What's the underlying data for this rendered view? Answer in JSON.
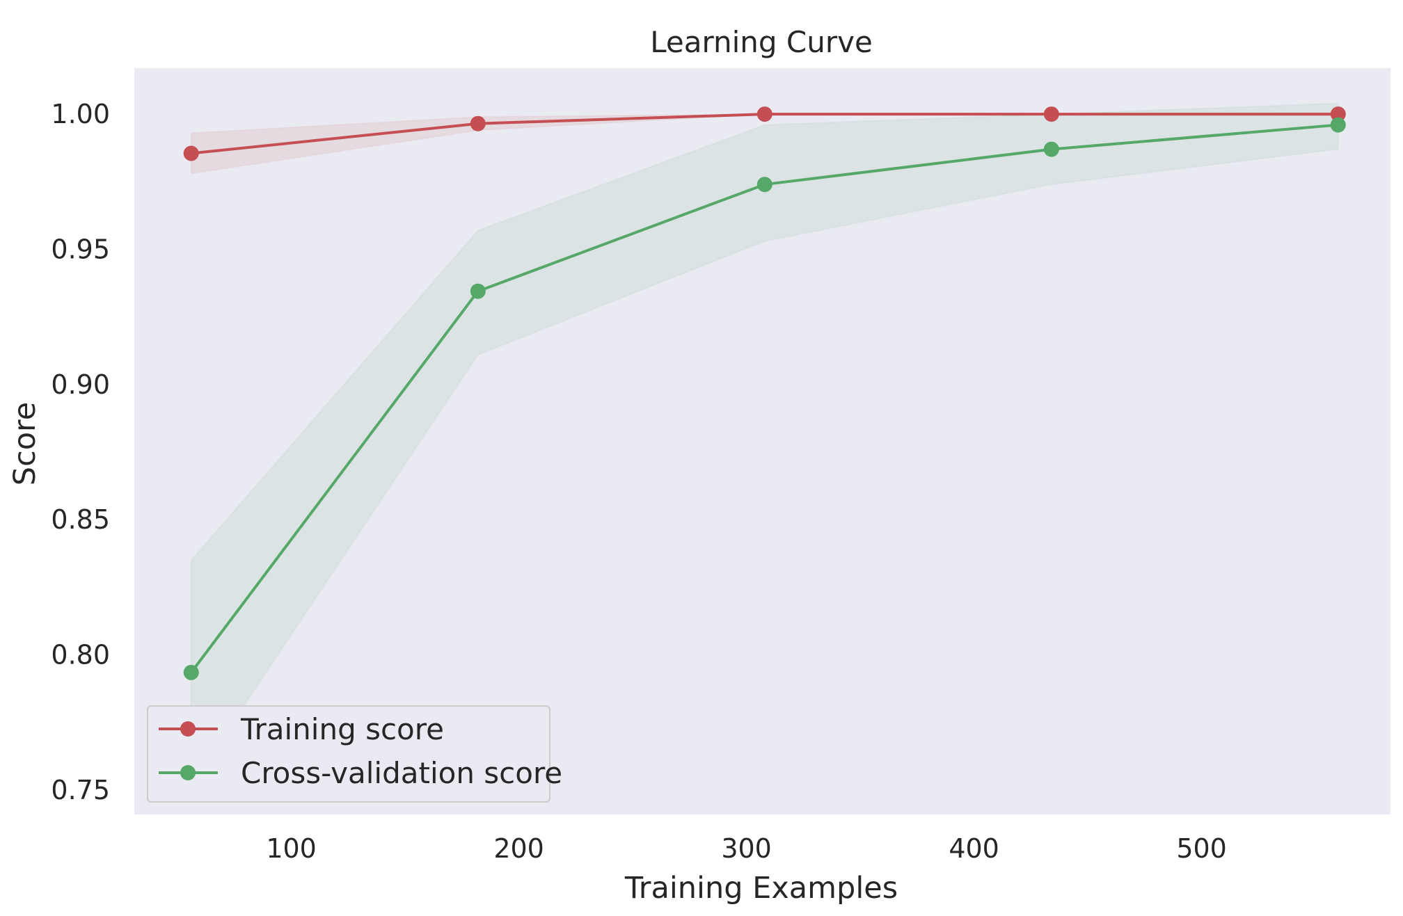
{
  "chart_data": {
    "type": "line",
    "title": "Learning Curve",
    "xlabel": "Training Examples",
    "ylabel": "Score",
    "xlim": [
      31,
      583
    ],
    "ylim": [
      0.741,
      1.017
    ],
    "xticks": [
      {
        "value": 100,
        "label": "100"
      },
      {
        "value": 200,
        "label": "200"
      },
      {
        "value": 300,
        "label": "300"
      },
      {
        "value": 400,
        "label": "400"
      },
      {
        "value": 500,
        "label": "500"
      }
    ],
    "yticks": [
      {
        "value": 0.75,
        "label": "0.75"
      },
      {
        "value": 0.8,
        "label": "0.80"
      },
      {
        "value": 0.85,
        "label": "0.85"
      },
      {
        "value": 0.9,
        "label": "0.90"
      },
      {
        "value": 0.95,
        "label": "0.95"
      },
      {
        "value": 1.0,
        "label": "1.00"
      }
    ],
    "x": [
      56,
      182,
      308,
      434,
      560
    ],
    "series": [
      {
        "name": "Training score",
        "color": "#c44e52",
        "values": [
          0.9855,
          0.9965,
          1.0,
          1.0,
          1.0
        ],
        "band_lower": [
          0.978,
          0.994,
          1.0,
          1.0,
          0.9995
        ],
        "band_upper": [
          0.993,
          0.999,
          1.0,
          1.0,
          1.0005
        ]
      },
      {
        "name": "Cross-validation score",
        "color": "#55a868",
        "values": [
          0.7935,
          0.9345,
          0.974,
          0.987,
          0.996
        ],
        "band_lower": [
          0.752,
          0.911,
          0.953,
          0.974,
          0.987
        ],
        "band_upper": [
          0.835,
          0.957,
          0.996,
          1.0,
          1.004
        ]
      }
    ],
    "grid": false,
    "plot_background": "#eaeaf2",
    "legend_position": "lower-left"
  }
}
